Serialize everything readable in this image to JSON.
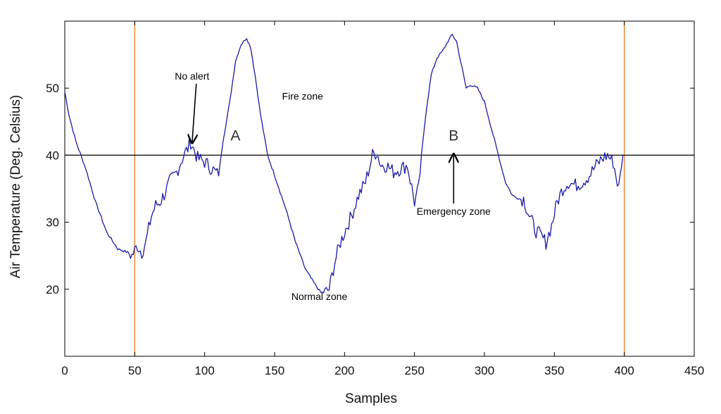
{
  "chart_data": {
    "type": "line",
    "title": "",
    "xlabel": "Samples",
    "ylabel": "Air Temperature (Deg. Celsius)",
    "xlim": [
      0,
      450
    ],
    "ylim": [
      10,
      60
    ],
    "xticks": [
      0,
      50,
      100,
      150,
      200,
      250,
      300,
      350,
      400,
      450
    ],
    "yticks": [
      20,
      30,
      40,
      50
    ],
    "grid": false,
    "series": [
      {
        "name": "",
        "color": "#1a1aa6",
        "x": [
          0,
          3,
          8,
          15,
          22,
          30,
          38,
          45,
          48,
          52,
          55,
          58,
          62,
          65,
          68,
          72,
          75,
          80,
          85,
          88,
          90,
          92,
          95,
          100,
          105,
          110,
          113,
          118,
          122,
          126,
          130,
          133,
          136,
          140,
          145,
          150,
          158,
          165,
          172,
          178,
          183,
          186,
          189,
          193,
          197,
          200,
          205,
          210,
          215,
          220,
          223,
          226,
          230,
          235,
          240,
          245,
          250,
          253,
          255,
          258,
          262,
          266,
          270,
          274,
          277,
          280,
          284,
          287,
          290,
          295,
          300,
          305,
          310,
          315,
          320,
          325,
          328,
          332,
          336,
          340,
          344,
          348,
          352,
          356,
          360,
          365,
          370,
          375,
          380,
          384,
          388,
          392,
          396,
          399
        ],
        "values": [
          49.5,
          46,
          42,
          38,
          33,
          28.5,
          26,
          25.5,
          25,
          26.5,
          25.5,
          27,
          31,
          32.5,
          33,
          34.5,
          36,
          37.5,
          40,
          41,
          42,
          41,
          39.5,
          39,
          38,
          37,
          42,
          48,
          54,
          56.5,
          57.5,
          56,
          52,
          46,
          40,
          37,
          32,
          27,
          23,
          21,
          19.5,
          19.5,
          20,
          24,
          27,
          28.5,
          31,
          34,
          36,
          40,
          40.5,
          38.5,
          38.5,
          37.5,
          38,
          38.5,
          33,
          35,
          40,
          46,
          52,
          54.5,
          55.5,
          57,
          58,
          57,
          53,
          50,
          50.5,
          50,
          48,
          44,
          40,
          36,
          34,
          33.5,
          33.5,
          31,
          29,
          28,
          27,
          29.5,
          33,
          35,
          36,
          35.5,
          36,
          37,
          38.5,
          39.5,
          40,
          39,
          35,
          40
        ]
      }
    ],
    "threshold_line": {
      "y": 40,
      "color": "#000000"
    },
    "vertical_lines": [
      {
        "x": 50,
        "color": "#e8893a"
      },
      {
        "x": 400,
        "color": "#e8893a"
      }
    ],
    "annotations": [
      {
        "text": "No alert",
        "x": 91,
        "y": 51.3,
        "arrow_to": [
          91,
          41.8
        ]
      },
      {
        "text": "A",
        "x": 122,
        "y": 42.2
      },
      {
        "text": "Fire zone",
        "x": 170,
        "y": 48.3
      },
      {
        "text": "B",
        "x": 278,
        "y": 42.2
      },
      {
        "text": "Emergency zone",
        "x": 278,
        "y": 31.1,
        "arrow_to": [
          278,
          40.2
        ]
      },
      {
        "text": "Normal zone",
        "x": 182,
        "y": 18.4
      }
    ]
  }
}
